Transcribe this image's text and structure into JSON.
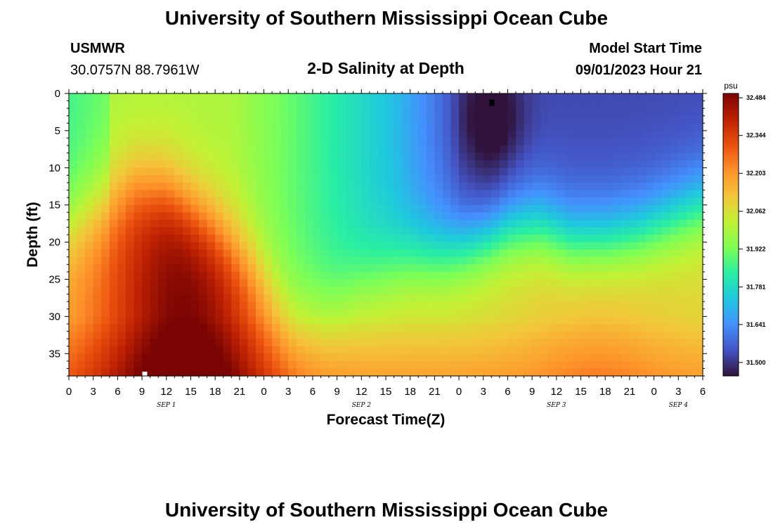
{
  "page": {
    "title": "University of Southern Mississippi Ocean Cube",
    "station": "USMWR",
    "coords": "30.0757N  88.7961W",
    "heading": "2-D Salinity at Depth",
    "model_start_label": "Model Start Time",
    "model_start_value": "09/01/2023 Hour 21",
    "footer_title": "University of Southern Mississippi Ocean Cube"
  },
  "chart_data": {
    "type": "heatmap",
    "title": "2-D Salinity at Depth",
    "xlabel": "Forecast Time(Z)",
    "ylabel": "Depth (ft)",
    "x_range_hours": [
      0,
      78
    ],
    "x_tick_labels": [
      "0",
      "3",
      "6",
      "9",
      "12",
      "15",
      "18",
      "21",
      "0",
      "3",
      "6",
      "9",
      "12",
      "15",
      "18",
      "21",
      "0",
      "3",
      "6",
      "9",
      "12",
      "15",
      "18",
      "21",
      "0",
      "3",
      "6"
    ],
    "day_labels": [
      {
        "hour": 12,
        "label": "SEP 1"
      },
      {
        "hour": 36,
        "label": "SEP 2"
      },
      {
        "hour": 60,
        "label": "SEP 3"
      },
      {
        "hour": 75,
        "label": "SEP 4"
      }
    ],
    "ylim": [
      38,
      0
    ],
    "y_ticks": [
      0,
      5,
      10,
      15,
      20,
      25,
      30,
      35
    ],
    "y_tick_labels": [
      "0",
      "5",
      "10",
      "15",
      "20",
      "25",
      "30",
      "35"
    ],
    "colorbar": {
      "unit": "psu",
      "range": [
        31.45,
        32.5
      ],
      "tick_values": [
        32.484,
        32.344,
        32.203,
        32.062,
        31.922,
        31.781,
        31.641,
        31.5
      ],
      "tick_labels": [
        "32.484",
        "32.344",
        "32.203",
        "32.062",
        "31.922",
        "31.781",
        "31.641",
        "31.500"
      ],
      "colors": [
        "#30123b",
        "#4454c4",
        "#4490fe",
        "#1fc8de",
        "#29efa2",
        "#7eff55",
        "#c3f134",
        "#f3c63a",
        "#fe922a",
        "#ea4f0d",
        "#be2102",
        "#7a0403"
      ]
    },
    "grid": false,
    "markers": [
      {
        "hour": 52,
        "depth": 1.2,
        "color": "#000000"
      },
      {
        "hour": 9.3,
        "depth": 37.8,
        "color": "#ffffff"
      }
    ]
  }
}
